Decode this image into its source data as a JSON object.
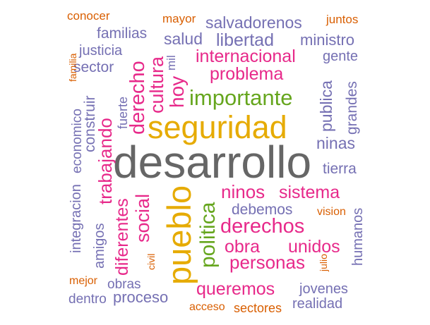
{
  "colors": {
    "gray": "#666666",
    "gold": "#E6AB02",
    "magenta": "#E7298A",
    "green": "#66A61E",
    "purple": "#7570B3",
    "orange": "#D95F02"
  },
  "words": {
    "desarrollo": "desarrollo",
    "seguridad": "seguridad",
    "pueblo": "pueblo",
    "importante": "importante",
    "politica": "politica",
    "internacional": "internacional",
    "problema": "problema",
    "derechos": "derechos",
    "ninos": "ninos",
    "sistema": "sistema",
    "obra": "obra",
    "unidos": "unidos",
    "personas": "personas",
    "queremos": "queremos",
    "derecho": "derecho",
    "cultura": "cultura",
    "hoy": "hoy",
    "trabajando": "trabajando",
    "social": "social",
    "diferentes": "diferentes",
    "salvadorenos": "salvadorenos",
    "libertad": "libertad",
    "salud": "salud",
    "familias": "familias",
    "ministro": "ministro",
    "justicia": "justicia",
    "sector": "sector",
    "gente": "gente",
    "publica": "publica",
    "ninas": "ninas",
    "tierra": "tierra",
    "debemos": "debemos",
    "jovenes": "jovenes",
    "realidad": "realidad",
    "proceso": "proceso",
    "obras": "obras",
    "dentro": "dentro",
    "sectores": "sectores",
    "grandes": "grandes",
    "humanos": "humanos",
    "construir": "construir",
    "economico": "economico",
    "integracion": "integracion",
    "amigos": "amigos",
    "fuerte": "fuerte",
    "mil": "mil",
    "conocer": "conocer",
    "mayor": "mayor",
    "juntos": "juntos",
    "familia": "familia",
    "vision": "vision",
    "julio": "julio",
    "civil": "civil",
    "mejor": "mejor",
    "acceso": "acceso"
  }
}
